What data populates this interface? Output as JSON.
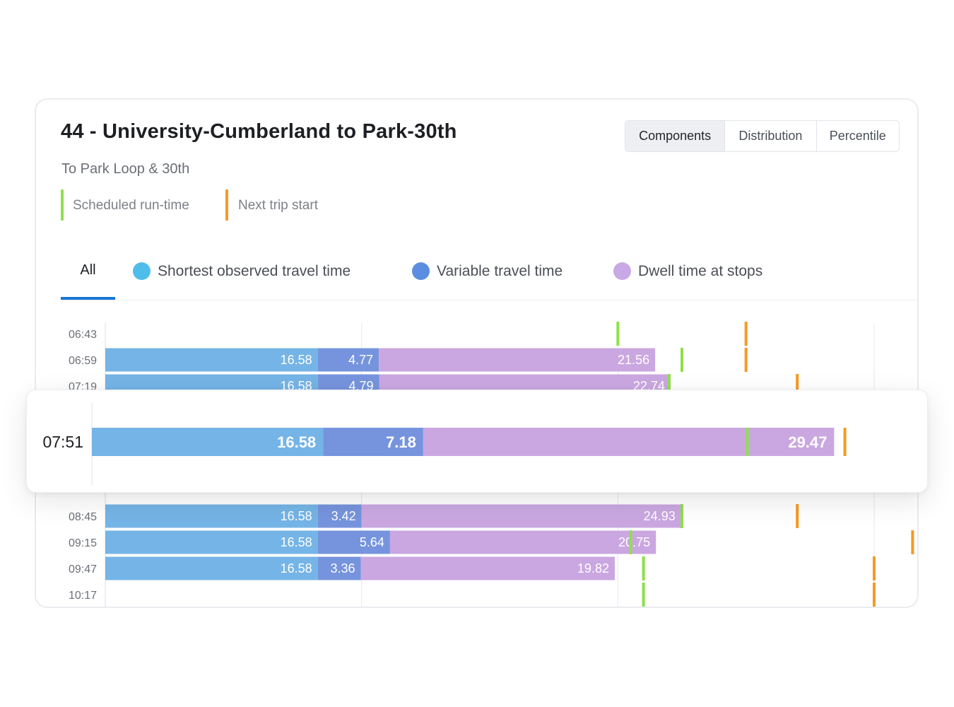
{
  "header": {
    "title": "44 - University-Cumberland to Park-30th",
    "subtitle": "To Park Loop & 30th"
  },
  "view_toggle": {
    "options": [
      "Components",
      "Distribution",
      "Percentile"
    ],
    "selected": "Components"
  },
  "markers_legend": [
    {
      "label": "Scheduled run-time",
      "color": "#8ee04a"
    },
    {
      "label": "Next trip start",
      "color": "#f59a23"
    }
  ],
  "series_tabs": {
    "all_label": "All",
    "items": [
      {
        "label": "Shortest observed travel time",
        "color": "#4fbdea"
      },
      {
        "label": "Variable travel time",
        "color": "#5b8ee0"
      },
      {
        "label": "Dwell time at stops",
        "color": "#c9a8e6"
      }
    ]
  },
  "colors": {
    "shortest": "#75b4e6",
    "variable": "#7694dd",
    "dwell": "#caa7e1",
    "scheduled": "#8ee04a",
    "next_trip": "#f59a23",
    "grid": "#e6e8eb",
    "label": "#6b6f76"
  },
  "chart_data": {
    "type": "bar",
    "orientation": "horizontal",
    "stacked": true,
    "categories": [
      "06:43",
      "06:59",
      "07:19",
      "08:45",
      "09:15",
      "09:47",
      "10:17"
    ],
    "series": [
      {
        "name": "Shortest observed travel time",
        "values": [
          null,
          16.58,
          16.58,
          16.58,
          16.58,
          16.58,
          null
        ]
      },
      {
        "name": "Variable travel time",
        "values": [
          null,
          4.77,
          4.79,
          3.42,
          5.64,
          3.36,
          null
        ]
      },
      {
        "name": "Dwell time at stops",
        "values": [
          null,
          21.56,
          22.74,
          24.93,
          20.75,
          19.82,
          null
        ]
      }
    ],
    "labels": [
      [
        null,
        null,
        null
      ],
      [
        "16.58",
        "4.77",
        "21.56"
      ],
      [
        "16.58",
        "4.79",
        "22.74"
      ],
      [
        "16.58",
        "3.42",
        "24.93"
      ],
      [
        "16.58",
        "5.64",
        "20.75"
      ],
      [
        "16.58",
        "3.36",
        "19.82"
      ],
      [
        null,
        null,
        null
      ]
    ],
    "scheduled_runtime": [
      40,
      45,
      44,
      45,
      41,
      42,
      42
    ],
    "next_trip_start": [
      50,
      50,
      54,
      54,
      63,
      60,
      60
    ],
    "xlim": [
      0,
      60
    ],
    "grid": true,
    "highlight": {
      "category": "07:51",
      "values": [
        16.58,
        7.18,
        29.47
      ],
      "labels": [
        "16.58",
        "7.18",
        "29.47"
      ],
      "scheduled_runtime": 47,
      "next_trip_start": 54
    }
  }
}
